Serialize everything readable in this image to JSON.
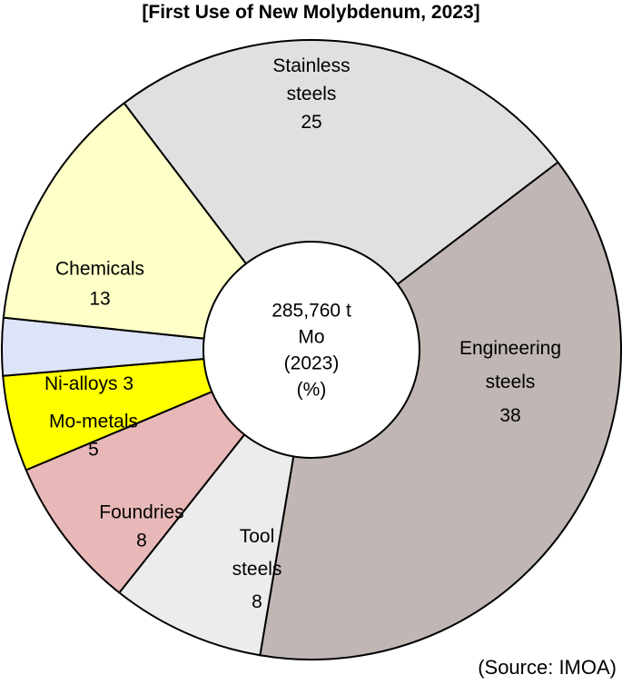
{
  "chart_data": {
    "type": "pie",
    "title": "[First Use of New Molybdenum, 2023]",
    "center_label": [
      "285,760 t",
      "Mo",
      "(2023)",
      "(%)"
    ],
    "source": "(Source: IMOA)",
    "slices": [
      {
        "lines": [
          "Stainless",
          "steels",
          "25"
        ],
        "value": 25,
        "color": "#e0e0e0"
      },
      {
        "lines": [
          "Engineering",
          "steels",
          "38"
        ],
        "value": 38,
        "color": "#c0b7b5"
      },
      {
        "lines": [
          "Tool",
          "steels",
          "8"
        ],
        "value": 8,
        "color": "#ececec"
      },
      {
        "lines": [
          "Foundries",
          "8"
        ],
        "value": 8,
        "color": "#e8b8b8"
      },
      {
        "lines": [
          "Mo-metals",
          "5"
        ],
        "value": 5,
        "color": "#ffff00"
      },
      {
        "lines": [
          "Ni-alloys 3"
        ],
        "value": 3,
        "color": "#dde4f8"
      },
      {
        "lines": [
          "Chemicals",
          "13"
        ],
        "value": 13,
        "color": "#ffffc8"
      }
    ]
  }
}
